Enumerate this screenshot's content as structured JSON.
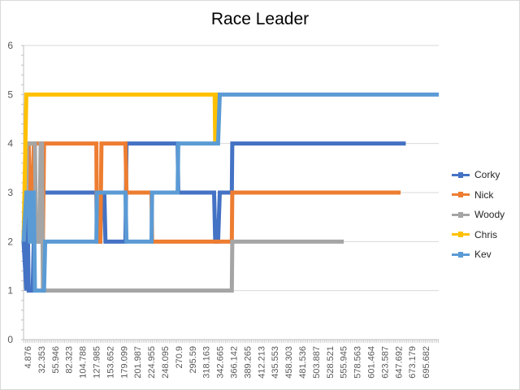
{
  "chart_data": {
    "type": "line",
    "title": "Race Leader",
    "xlabel": "",
    "ylabel": "",
    "ylim": [
      0,
      6
    ],
    "yticks": [
      0,
      1,
      2,
      3,
      4,
      5,
      6
    ],
    "xlim": [
      0,
      730
    ],
    "x_tick_labels": [
      "4.876",
      "32.353",
      "55.946",
      "82.323",
      "104.788",
      "127.985",
      "153.652",
      "179.099",
      "201.987",
      "224.955",
      "248.095",
      "270.9",
      "295.59",
      "318.163",
      "342.665",
      "366.142",
      "389.265",
      "412.213",
      "435.553",
      "458.303",
      "481.536",
      "503.887",
      "528.521",
      "555.945",
      "578.563",
      "601.464",
      "623.587",
      "647.692",
      "673.179",
      "695.682"
    ],
    "grid": "horizontal",
    "legend": "right",
    "series": [
      {
        "name": "Corky",
        "color": "#4472c4",
        "points": [
          [
            0,
            2
          ],
          [
            4.876,
            1
          ],
          [
            5.5,
            4
          ],
          [
            9,
            1
          ],
          [
            16,
            1
          ],
          [
            18,
            2
          ],
          [
            32.353,
            2
          ],
          [
            34,
            3
          ],
          [
            127.985,
            3
          ],
          [
            129,
            2
          ],
          [
            135,
            2
          ],
          [
            137,
            3
          ],
          [
            142,
            3
          ],
          [
            144,
            2
          ],
          [
            179.099,
            2
          ],
          [
            181,
            4
          ],
          [
            270.9,
            4
          ],
          [
            272,
            3
          ],
          [
            335,
            3
          ],
          [
            337,
            2
          ],
          [
            342,
            2
          ],
          [
            345,
            3
          ],
          [
            366.142,
            3
          ],
          [
            367,
            4
          ],
          [
            670,
            4
          ],
          [
            672,
            4
          ]
        ]
      },
      {
        "name": "Nick",
        "color": "#ed7d31",
        "points": [
          [
            0,
            2
          ],
          [
            4.876,
            4
          ],
          [
            9,
            4
          ],
          [
            11,
            3
          ],
          [
            16,
            3
          ],
          [
            18,
            4
          ],
          [
            30,
            4
          ],
          [
            32.353,
            2
          ],
          [
            34,
            2
          ],
          [
            36,
            4
          ],
          [
            127.985,
            4
          ],
          [
            129,
            2
          ],
          [
            135,
            2
          ],
          [
            137,
            4
          ],
          [
            179.099,
            4
          ],
          [
            181,
            3
          ],
          [
            224.955,
            3
          ],
          [
            226,
            2
          ],
          [
            366.142,
            2
          ],
          [
            367,
            3
          ],
          [
            660,
            3
          ],
          [
            663,
            3
          ]
        ]
      },
      {
        "name": "Woody",
        "color": "#a5a5a5",
        "points": [
          [
            0,
            2
          ],
          [
            4.876,
            3
          ],
          [
            6,
            4
          ],
          [
            20,
            4
          ],
          [
            22,
            2
          ],
          [
            28,
            2
          ],
          [
            30,
            4
          ],
          [
            32.353,
            4
          ],
          [
            34,
            1
          ],
          [
            366.142,
            1
          ],
          [
            367,
            2
          ],
          [
            560,
            2
          ],
          [
            563,
            2
          ]
        ]
      },
      {
        "name": "Chris",
        "color": "#ffc000",
        "points": [
          [
            0,
            2
          ],
          [
            4.876,
            5
          ],
          [
            336,
            5
          ],
          [
            337,
            4
          ],
          [
            338,
            5
          ],
          [
            342.665,
            5
          ],
          [
            344,
            5
          ]
        ]
      },
      {
        "name": "Kev",
        "color": "#5b9bd5",
        "points": [
          [
            0,
            2
          ],
          [
            4.876,
            3
          ],
          [
            9,
            3
          ],
          [
            11,
            2
          ],
          [
            14,
            2
          ],
          [
            16,
            3
          ],
          [
            18,
            3
          ],
          [
            20,
            1
          ],
          [
            36,
            1
          ],
          [
            38,
            2
          ],
          [
            127.985,
            2
          ],
          [
            129,
            3
          ],
          [
            179.099,
            3
          ],
          [
            181,
            2
          ],
          [
            224.955,
            2
          ],
          [
            226,
            3
          ],
          [
            270.9,
            3
          ],
          [
            272,
            4
          ],
          [
            335,
            4
          ],
          [
            337,
            4
          ],
          [
            342,
            4
          ],
          [
            345,
            5
          ],
          [
            370,
            5
          ],
          [
            730,
            5
          ]
        ]
      }
    ]
  }
}
